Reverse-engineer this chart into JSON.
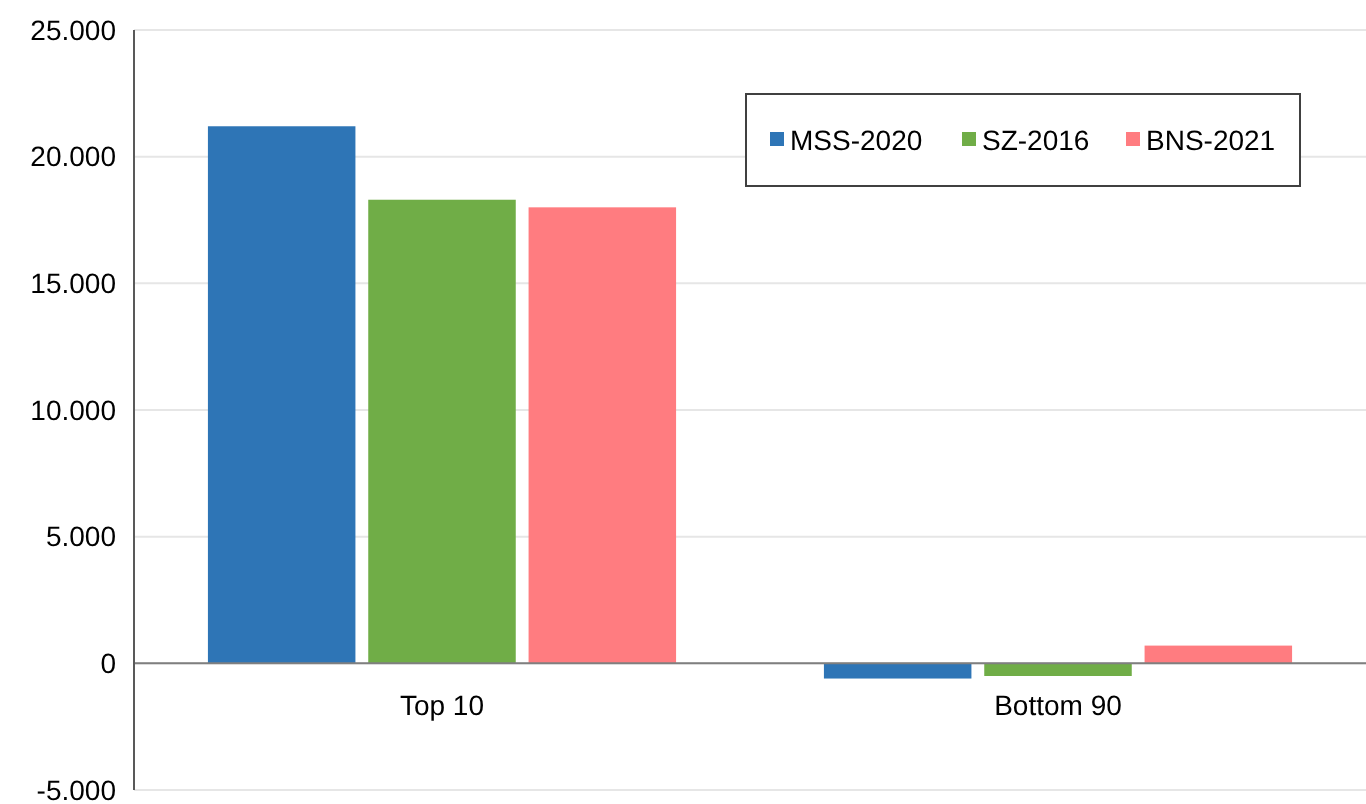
{
  "chart_data": {
    "type": "bar",
    "categories": [
      "Top 10",
      "Bottom 90"
    ],
    "series": [
      {
        "name": "MSS-2020",
        "color": "#2e75b6",
        "values": [
          21200,
          -600
        ]
      },
      {
        "name": "SZ-2016",
        "color": "#70ad47",
        "values": [
          18300,
          -500
        ]
      },
      {
        "name": "BNS-2021",
        "color": "#ff7c80",
        "values": [
          18000,
          700
        ]
      }
    ],
    "ylim": [
      -5000,
      25000
    ],
    "yticks": [
      {
        "value": -5000,
        "label": "-5.000"
      },
      {
        "value": 0,
        "label": "0"
      },
      {
        "value": 5000,
        "label": "5.000"
      },
      {
        "value": 10000,
        "label": "10.000"
      },
      {
        "value": 15000,
        "label": "15.000"
      },
      {
        "value": 20000,
        "label": "20.000"
      },
      {
        "value": 25000,
        "label": "25.000"
      }
    ],
    "grid": "y",
    "legend": "top right"
  }
}
